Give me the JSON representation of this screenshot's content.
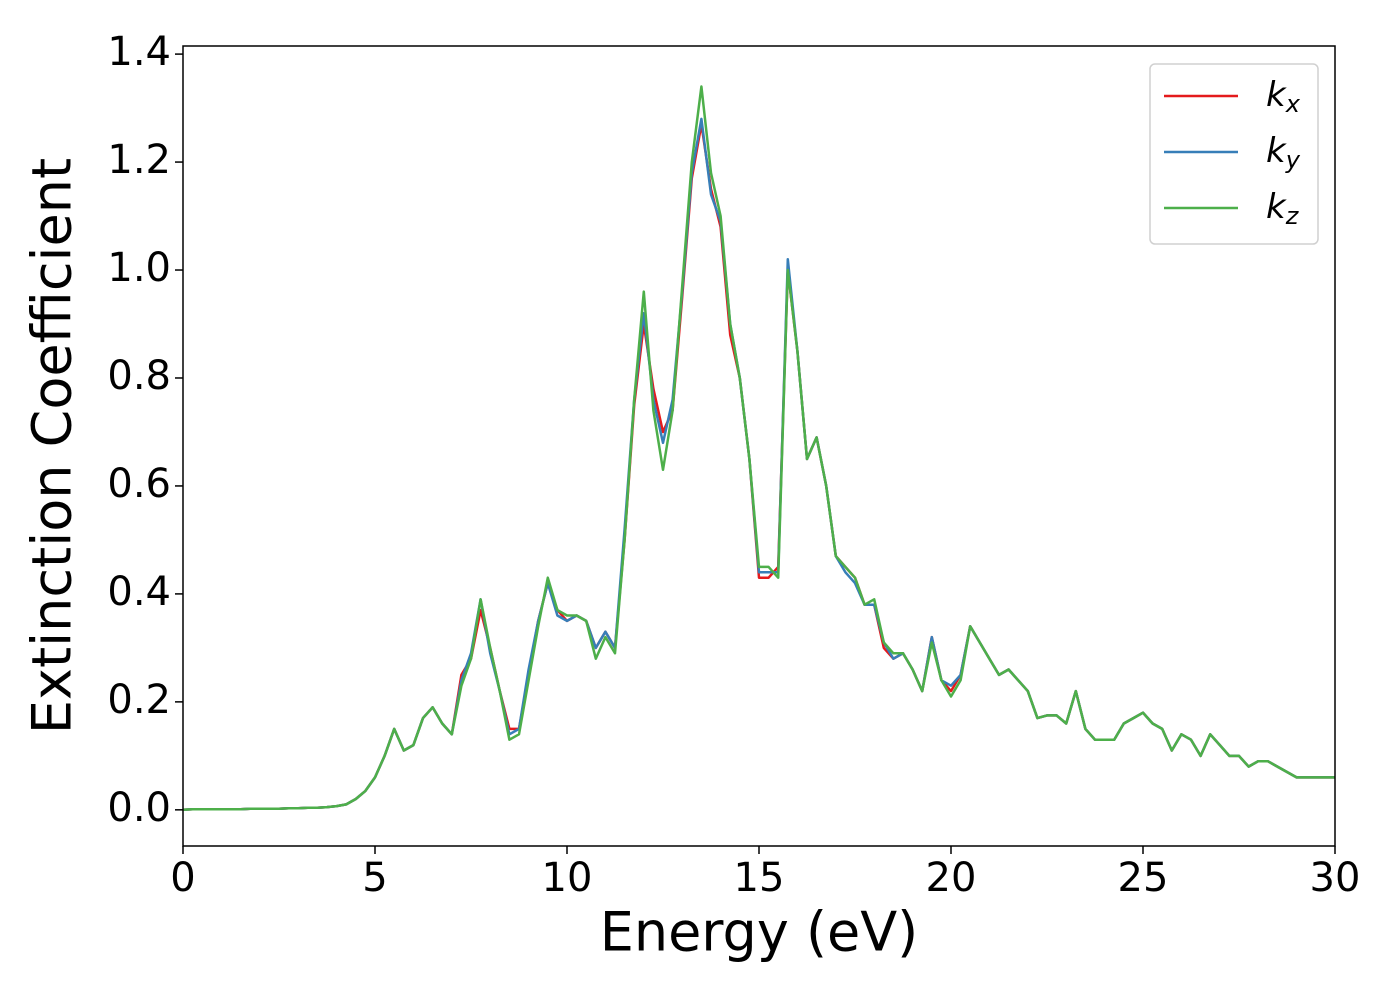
{
  "chart_data": {
    "type": "line",
    "xlabel": "Energy (eV)",
    "ylabel": "Extinction Coefficient",
    "x": [
      0,
      0.25,
      0.5,
      0.75,
      1,
      1.25,
      1.5,
      1.75,
      2,
      2.25,
      2.5,
      2.75,
      3,
      3.25,
      3.5,
      3.75,
      4,
      4.25,
      4.5,
      4.75,
      5,
      5.25,
      5.5,
      5.75,
      6,
      6.25,
      6.5,
      6.75,
      7,
      7.25,
      7.5,
      7.75,
      8,
      8.25,
      8.5,
      8.75,
      9,
      9.25,
      9.5,
      9.75,
      10,
      10.25,
      10.5,
      10.75,
      11,
      11.25,
      11.5,
      11.75,
      12,
      12.25,
      12.5,
      12.75,
      13,
      13.25,
      13.5,
      13.75,
      14,
      14.25,
      14.5,
      14.75,
      15,
      15.25,
      15.5,
      15.75,
      16,
      16.25,
      16.5,
      16.75,
      17,
      17.25,
      17.5,
      17.75,
      18,
      18.25,
      18.5,
      18.75,
      19,
      19.25,
      19.5,
      19.75,
      20,
      20.25,
      20.5,
      20.75,
      21,
      21.25,
      21.5,
      21.75,
      22,
      22.25,
      22.5,
      22.75,
      23,
      23.25,
      23.5,
      23.75,
      24,
      24.25,
      24.5,
      24.75,
      25,
      25.25,
      25.5,
      25.75,
      26,
      26.25,
      26.5,
      26.75,
      27,
      27.25,
      27.5,
      27.75,
      28,
      28.25,
      28.5,
      28.75,
      29,
      29.25,
      29.5,
      29.75,
      30
    ],
    "series": [
      {
        "name": "kx",
        "color": "#e41a1c",
        "values": [
          0,
          0.001,
          0.001,
          0.001,
          0.001,
          0.001,
          0.001,
          0.002,
          0.002,
          0.002,
          0.002,
          0.003,
          0.003,
          0.004,
          0.004,
          0.005,
          0.007,
          0.01,
          0.02,
          0.035,
          0.06,
          0.1,
          0.15,
          0.11,
          0.12,
          0.17,
          0.19,
          0.16,
          0.14,
          0.25,
          0.28,
          0.37,
          0.3,
          0.22,
          0.15,
          0.15,
          0.25,
          0.35,
          0.42,
          0.37,
          0.35,
          0.36,
          0.35,
          0.3,
          0.33,
          0.3,
          0.5,
          0.75,
          0.9,
          0.78,
          0.7,
          0.74,
          0.95,
          1.17,
          1.27,
          1.15,
          1.08,
          0.88,
          0.8,
          0.65,
          0.43,
          0.43,
          0.45,
          1.0,
          0.85,
          0.65,
          0.69,
          0.6,
          0.47,
          0.45,
          0.43,
          0.38,
          0.38,
          0.3,
          0.28,
          0.29,
          0.26,
          0.22,
          0.32,
          0.24,
          0.22,
          0.25,
          0.34,
          0.31,
          0.28,
          0.25,
          0.26,
          0.24,
          0.22,
          0.17,
          0.175,
          0.175,
          0.16,
          0.22,
          0.15,
          0.13,
          0.13,
          0.13,
          0.16,
          0.17,
          0.18,
          0.16,
          0.15,
          0.11,
          0.14,
          0.13,
          0.1,
          0.14,
          0.12,
          0.1,
          0.1,
          0.08,
          0.09,
          0.09,
          0.08,
          0.07,
          0.06,
          0.06,
          0.06,
          0.06,
          0.06
        ]
      },
      {
        "name": "ky",
        "color": "#377eb8",
        "values": [
          0,
          0.001,
          0.001,
          0.001,
          0.001,
          0.001,
          0.001,
          0.002,
          0.002,
          0.002,
          0.002,
          0.003,
          0.003,
          0.004,
          0.004,
          0.005,
          0.007,
          0.01,
          0.02,
          0.035,
          0.06,
          0.1,
          0.15,
          0.11,
          0.12,
          0.17,
          0.19,
          0.16,
          0.14,
          0.24,
          0.29,
          0.39,
          0.29,
          0.22,
          0.14,
          0.15,
          0.26,
          0.35,
          0.42,
          0.36,
          0.35,
          0.36,
          0.35,
          0.3,
          0.33,
          0.3,
          0.52,
          0.76,
          0.92,
          0.76,
          0.68,
          0.76,
          0.96,
          1.18,
          1.28,
          1.14,
          1.09,
          0.9,
          0.8,
          0.65,
          0.44,
          0.44,
          0.44,
          1.02,
          0.85,
          0.65,
          0.69,
          0.6,
          0.47,
          0.44,
          0.42,
          0.38,
          0.38,
          0.31,
          0.28,
          0.29,
          0.26,
          0.22,
          0.32,
          0.24,
          0.23,
          0.25,
          0.34,
          0.31,
          0.28,
          0.25,
          0.26,
          0.24,
          0.22,
          0.17,
          0.175,
          0.175,
          0.16,
          0.22,
          0.15,
          0.13,
          0.13,
          0.13,
          0.16,
          0.17,
          0.18,
          0.16,
          0.15,
          0.11,
          0.14,
          0.13,
          0.1,
          0.14,
          0.12,
          0.1,
          0.1,
          0.08,
          0.09,
          0.09,
          0.08,
          0.07,
          0.06,
          0.06,
          0.06,
          0.06,
          0.06
        ]
      },
      {
        "name": "kz",
        "color": "#4daf4a",
        "values": [
          0,
          0.001,
          0.001,
          0.001,
          0.001,
          0.001,
          0.001,
          0.002,
          0.002,
          0.002,
          0.002,
          0.003,
          0.003,
          0.004,
          0.004,
          0.005,
          0.007,
          0.01,
          0.02,
          0.035,
          0.06,
          0.1,
          0.15,
          0.11,
          0.12,
          0.17,
          0.19,
          0.16,
          0.14,
          0.23,
          0.28,
          0.39,
          0.3,
          0.22,
          0.13,
          0.14,
          0.24,
          0.34,
          0.43,
          0.37,
          0.36,
          0.36,
          0.35,
          0.28,
          0.32,
          0.29,
          0.5,
          0.76,
          0.96,
          0.74,
          0.63,
          0.74,
          0.97,
          1.2,
          1.34,
          1.18,
          1.1,
          0.9,
          0.8,
          0.65,
          0.45,
          0.45,
          0.43,
          1.0,
          0.85,
          0.65,
          0.69,
          0.6,
          0.47,
          0.45,
          0.43,
          0.38,
          0.39,
          0.31,
          0.29,
          0.29,
          0.26,
          0.22,
          0.31,
          0.24,
          0.21,
          0.24,
          0.34,
          0.31,
          0.28,
          0.25,
          0.26,
          0.24,
          0.22,
          0.17,
          0.175,
          0.175,
          0.16,
          0.22,
          0.15,
          0.13,
          0.13,
          0.13,
          0.16,
          0.17,
          0.18,
          0.16,
          0.15,
          0.11,
          0.14,
          0.13,
          0.1,
          0.14,
          0.12,
          0.1,
          0.1,
          0.08,
          0.09,
          0.09,
          0.08,
          0.07,
          0.06,
          0.06,
          0.06,
          0.06,
          0.06
        ]
      }
    ],
    "xlim": [
      0,
      30
    ],
    "xticks": [
      0,
      5,
      10,
      15,
      20,
      25,
      30
    ],
    "ylim": [
      -0.067,
      1.415
    ],
    "yticks": [
      {
        "value": 0,
        "label": "0.0"
      },
      0.2,
      0.4,
      0.6,
      0.8,
      {
        "value": 1,
        "label": "1.0"
      },
      1.2,
      1.4
    ],
    "grid": false,
    "legend": "upper right"
  }
}
